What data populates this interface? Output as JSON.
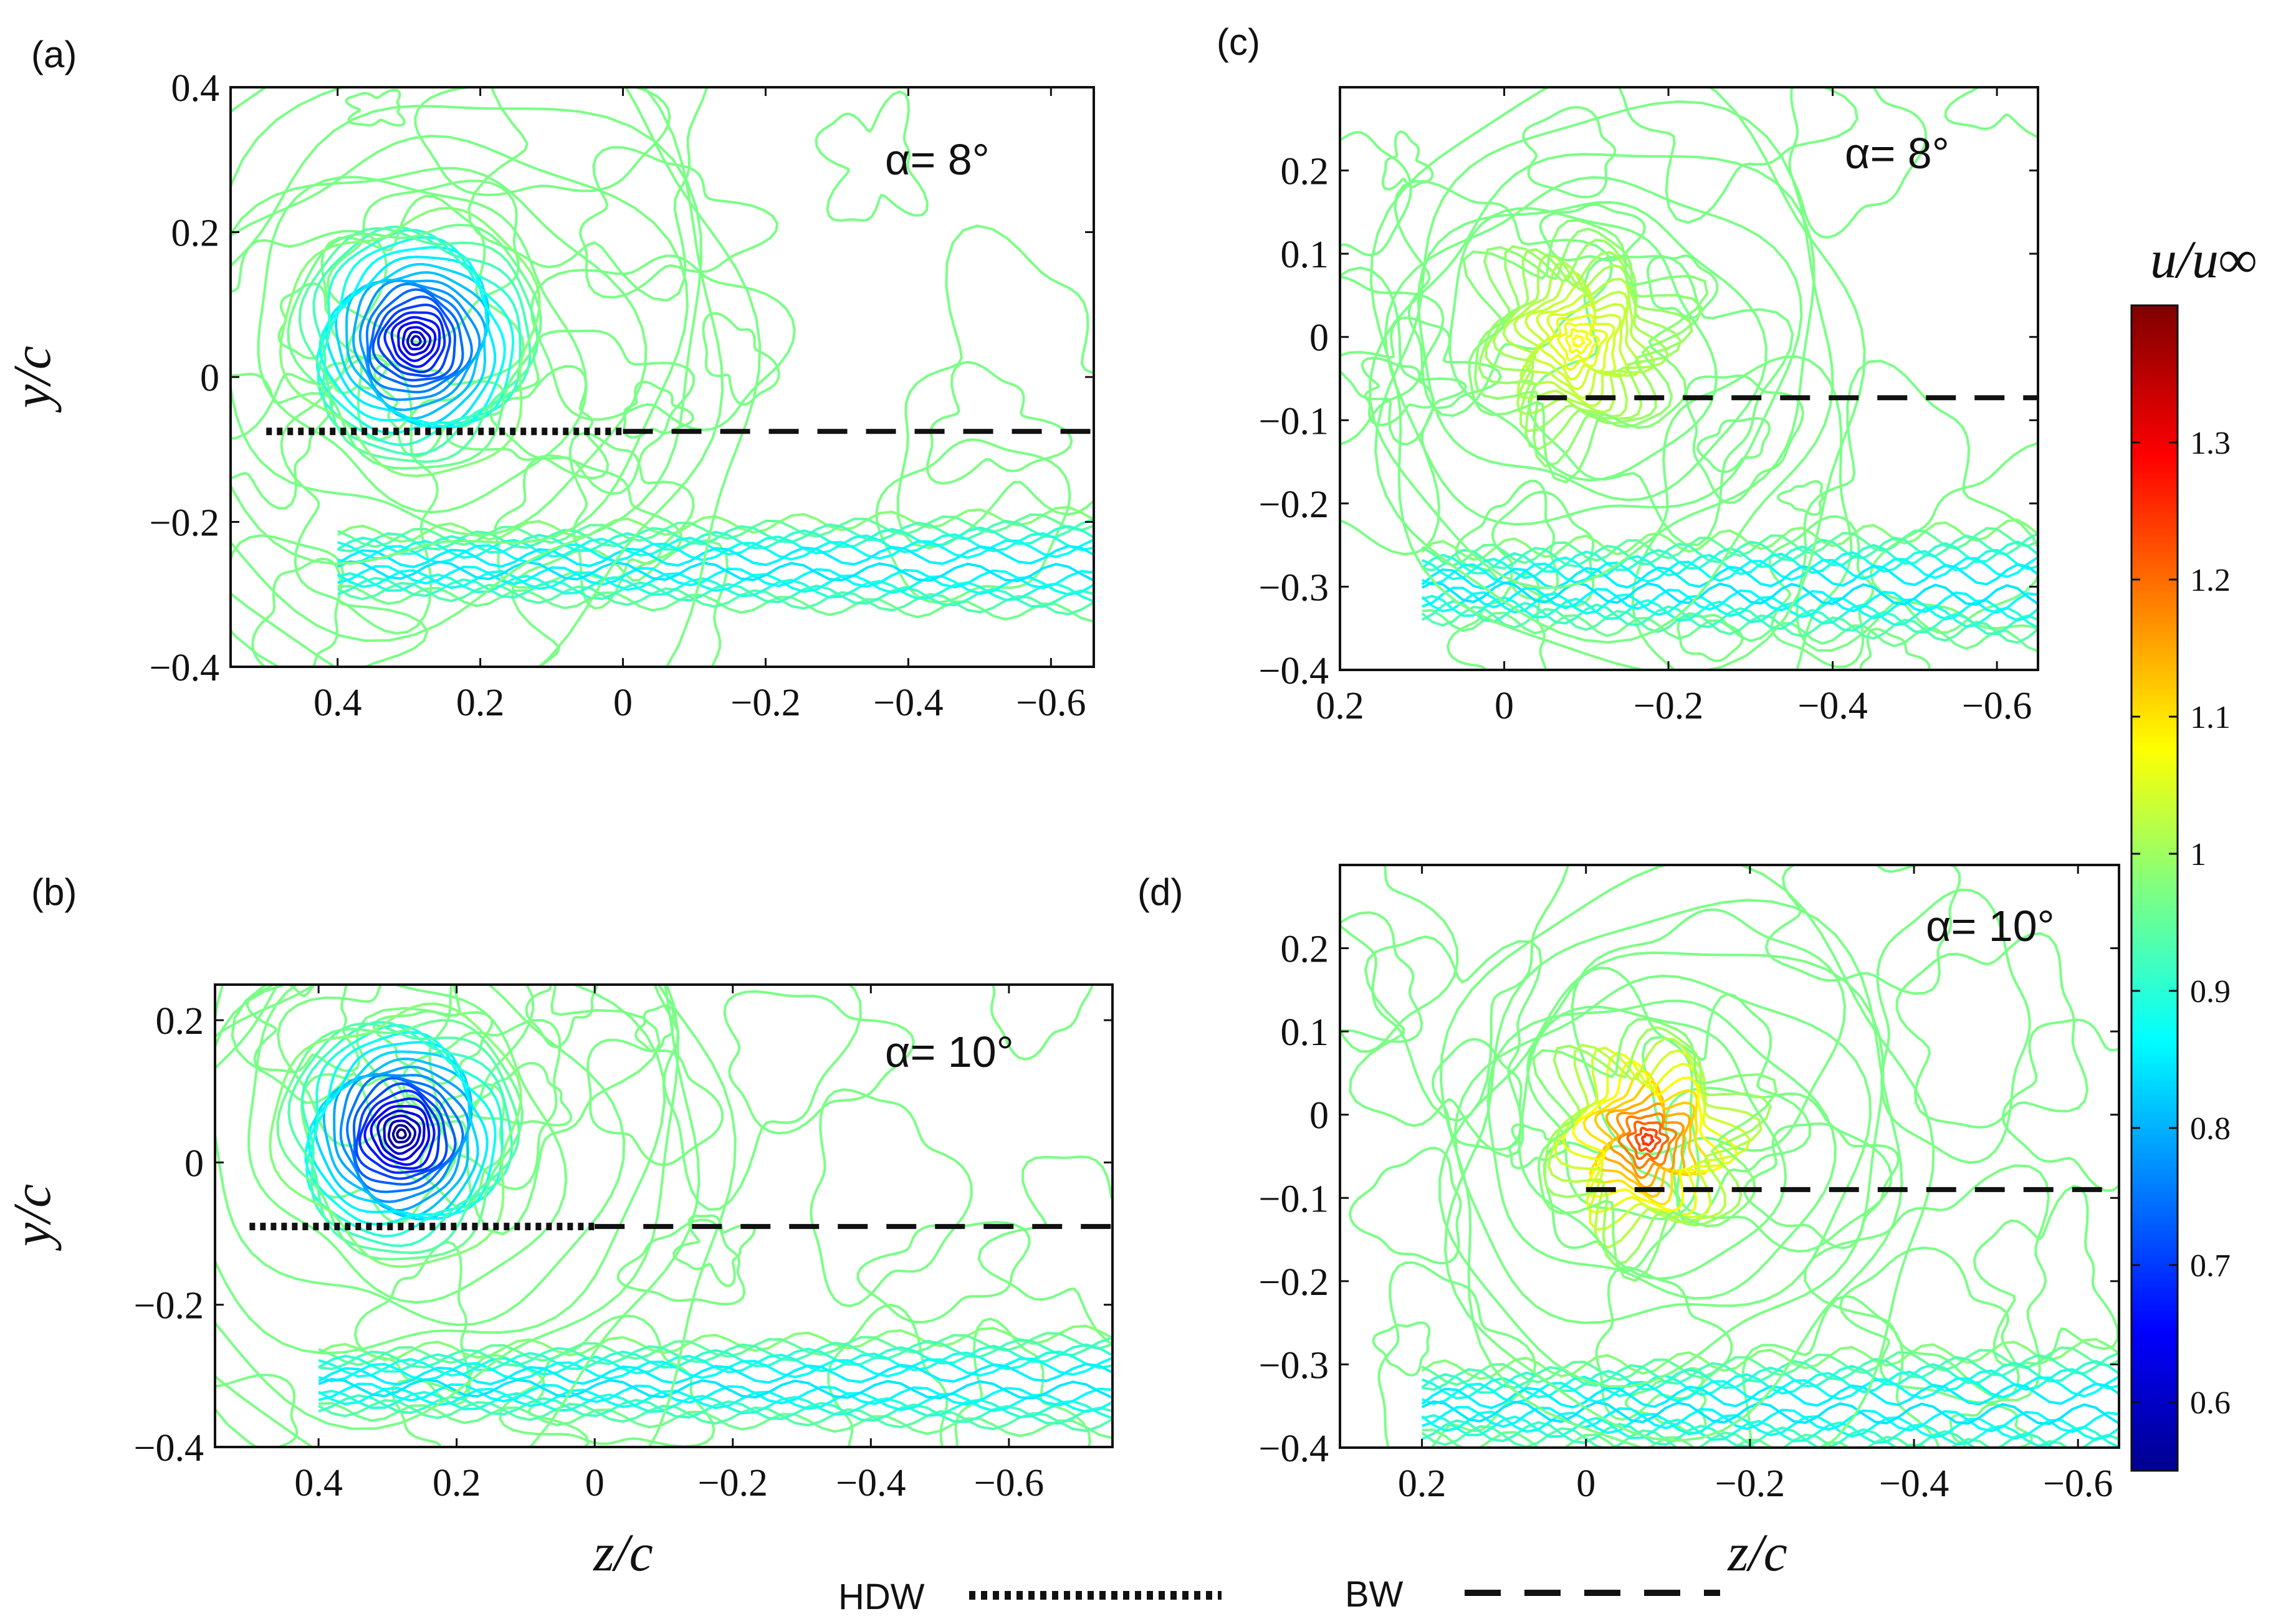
{
  "chart_data": [
    {
      "panel": "(a)",
      "type": "contour",
      "annotation": "α= 8°",
      "xlabel": "",
      "ylabel": "y/c",
      "xlim": [
        0.55,
        -0.66
      ],
      "ylim": [
        -0.4,
        0.4
      ],
      "xticks": [
        0.4,
        0.2,
        0,
        -0.2,
        -0.4,
        -0.6
      ],
      "xtick_labels": [
        "0.4",
        "0.2",
        "0",
        "−0.2",
        "−0.4",
        "−0.6"
      ],
      "yticks": [
        0.4,
        0.2,
        0,
        -0.2,
        -0.4
      ],
      "ytick_labels": [
        "0.4",
        "0.2",
        "0",
        "−0.2",
        "−0.4"
      ],
      "vortex": {
        "z": 0.29,
        "y": 0.05,
        "min_u": 0.6
      },
      "hdw_line": {
        "y": -0.075,
        "z_from": 0.5,
        "z_to": 0.0
      },
      "bw_line": {
        "y": -0.075,
        "z_from": 0.0,
        "z_to": -0.66
      },
      "wake": {
        "z_from": 0.4,
        "z_to": -0.66,
        "y_center": -0.26,
        "min_u": 0.85
      }
    },
    {
      "panel": "(b)",
      "type": "contour",
      "annotation": "α= 10°",
      "xlabel": "z/c",
      "ylabel": "y/c",
      "xlim": [
        0.55,
        -0.75
      ],
      "ylim": [
        -0.4,
        0.25
      ],
      "xticks": [
        0.4,
        0.2,
        0,
        -0.2,
        -0.4,
        -0.6
      ],
      "xtick_labels": [
        "0.4",
        "0.2",
        "0",
        "−0.2",
        "−0.4",
        "−0.6"
      ],
      "yticks": [
        0.2,
        0,
        -0.2,
        -0.4
      ],
      "ytick_labels": [
        "0.2",
        "0",
        "−0.2",
        "−0.4"
      ],
      "vortex": {
        "z": 0.28,
        "y": 0.04,
        "min_u": 0.55
      },
      "hdw_line": {
        "y": -0.09,
        "z_from": 0.5,
        "z_to": 0.0
      },
      "bw_line": {
        "y": -0.09,
        "z_from": 0.0,
        "z_to": -0.75
      },
      "wake": {
        "z_from": 0.4,
        "z_to": -0.75,
        "y_center": -0.31,
        "min_u": 0.85
      }
    },
    {
      "panel": "(c)",
      "type": "contour",
      "annotation": "α= 8°",
      "xlabel": "",
      "ylabel": "",
      "xlim": [
        0.2,
        -0.65
      ],
      "ylim": [
        -0.4,
        0.3
      ],
      "xticks": [
        0.2,
        0,
        -0.2,
        -0.4,
        -0.6
      ],
      "xtick_labels": [
        "0.2",
        "0",
        "−0.2",
        "−0.4",
        "−0.6"
      ],
      "yticks": [
        0.2,
        0.1,
        0,
        -0.1,
        -0.2,
        -0.3,
        -0.4
      ],
      "ytick_labels": [
        "0.2",
        "0.1",
        "0",
        "−0.1",
        "−0.2",
        "−0.3",
        "−0.4"
      ],
      "vortex": {
        "z": -0.09,
        "y": -0.005,
        "max_u": 1.08
      },
      "bw_line": {
        "y": -0.073,
        "z_from": -0.04,
        "z_to": -0.65
      },
      "wake": {
        "z_from": 0.1,
        "z_to": -0.65,
        "y_center": -0.3,
        "min_u": 0.85
      }
    },
    {
      "panel": "(d)",
      "type": "contour",
      "annotation": "α= 10°",
      "xlabel": "z/c",
      "ylabel": "",
      "xlim": [
        0.3,
        -0.65
      ],
      "ylim": [
        -0.4,
        0.3
      ],
      "xticks": [
        0.2,
        0,
        -0.2,
        -0.4,
        -0.6
      ],
      "xtick_labels": [
        "0.2",
        "0",
        "−0.2",
        "−0.4",
        "−0.6"
      ],
      "yticks": [
        0.2,
        0.1,
        0,
        -0.1,
        -0.2,
        -0.3,
        -0.4
      ],
      "ytick_labels": [
        "0.2",
        "0.1",
        "0",
        "−0.1",
        "−0.2",
        "−0.3",
        "−0.4"
      ],
      "vortex": {
        "z": -0.075,
        "y": -0.03,
        "max_u": 1.25
      },
      "bw_line": {
        "y": -0.09,
        "z_from": 0.0,
        "z_to": -0.65
      },
      "wake": {
        "z_from": 0.2,
        "z_to": -0.65,
        "y_center": -0.35,
        "min_u": 0.85
      }
    }
  ],
  "colorbar": {
    "title": "u/u∞",
    "range": [
      0.55,
      1.4
    ],
    "ticks": [
      0.6,
      0.7,
      0.8,
      0.9,
      1.0,
      1.1,
      1.2,
      1.3
    ],
    "tick_labels": [
      "0.6",
      "0.7",
      "0.8",
      "0.9",
      "1",
      "1.1",
      "1.2",
      "1.3"
    ],
    "colormap": "jet"
  },
  "legend": [
    {
      "label": "HDW",
      "style": "dotted"
    },
    {
      "label": "BW",
      "style": "dashed"
    }
  ]
}
